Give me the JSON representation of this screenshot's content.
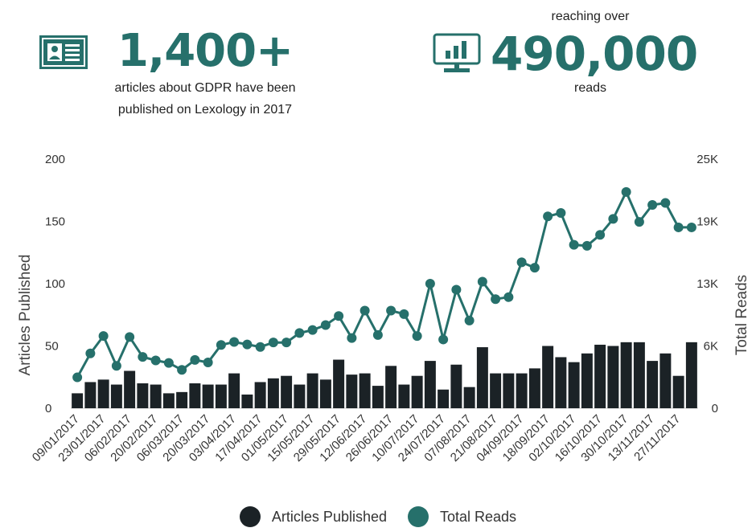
{
  "header": {
    "left": {
      "value": "1,400+",
      "caption_line1": "articles about GDPR have been",
      "caption_line2": "published on Lexology in 2017",
      "icon": "id-card-icon"
    },
    "right": {
      "prefix": "reaching over",
      "value": "490,000",
      "suffix": "reads",
      "icon": "monitor-chart-icon"
    }
  },
  "colors": {
    "bar": "#1b2226",
    "line": "#26706b",
    "accent": "#26706b"
  },
  "legend": {
    "articles_label": "Articles Published",
    "reads_label": "Total Reads"
  },
  "chart_data": {
    "type": "bar+line",
    "xlabel": "",
    "ylabel_left": "Articles Published",
    "ylabel_right": "Total Reads",
    "ylim_left": [
      0,
      200
    ],
    "yticks_left": [
      "0",
      "50",
      "100",
      "150",
      "200"
    ],
    "ylim_right": [
      0,
      25000
    ],
    "yticks_right": [
      "0",
      "6K",
      "13K",
      "19K",
      "25K"
    ],
    "x_tick_labels": [
      "09/01/2017",
      "23/01/2017",
      "06/02/2017",
      "20/02/2017",
      "06/03/2017",
      "20/03/2017",
      "03/04/2017",
      "17/04/2017",
      "01/05/2017",
      "15/05/2017",
      "29/05/2017",
      "12/06/2017",
      "26/06/2017",
      "10/07/2017",
      "24/07/2017",
      "07/08/2017",
      "21/08/2017",
      "04/09/2017",
      "18/09/2017",
      "02/10/2017",
      "16/10/2017",
      "30/10/2017",
      "13/11/2017",
      "27/11/2017"
    ],
    "grid": false,
    "legend_position": "bottom-center",
    "series": [
      {
        "name": "Articles Published",
        "type": "bar",
        "axis": "left",
        "values": [
          12,
          21,
          23,
          19,
          30,
          20,
          19,
          12,
          13,
          20,
          19,
          19,
          28,
          11,
          21,
          24,
          26,
          19,
          28,
          23,
          39,
          27,
          28,
          18,
          34,
          19,
          26,
          38,
          15,
          35,
          17,
          49,
          28,
          28,
          28,
          32,
          50,
          41,
          37,
          44,
          51,
          50,
          53,
          53,
          38,
          44,
          26,
          53
        ]
      },
      {
        "name": "Total Reads",
        "type": "line",
        "axis": "right",
        "values": [
          3100,
          5500,
          7250,
          4250,
          7150,
          5150,
          4800,
          4550,
          3850,
          4850,
          4600,
          6350,
          6650,
          6400,
          6150,
          6600,
          6600,
          7550,
          7850,
          8350,
          9250,
          7050,
          9800,
          7350,
          9800,
          9450,
          7250,
          12500,
          6900,
          11900,
          8800,
          12700,
          10950,
          11150,
          14650,
          14100,
          19250,
          19600,
          16400,
          16300,
          17400,
          19000,
          21700,
          18700,
          20400,
          20600,
          18150,
          18150
        ]
      }
    ]
  }
}
